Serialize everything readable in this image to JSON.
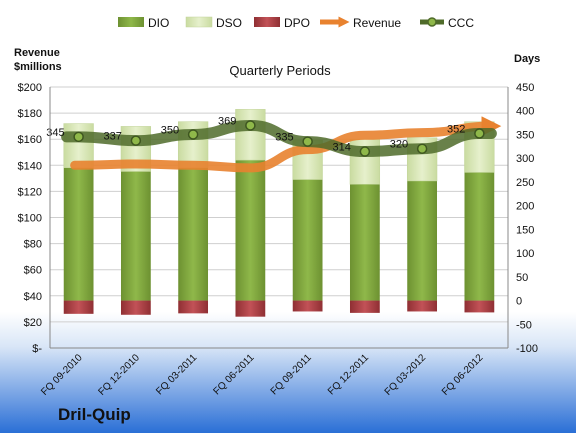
{
  "company": "Dril-Quip",
  "chart_data": {
    "type": "bar",
    "title": "Quarterly Periods",
    "left_axis_title": [
      "Revenue",
      "$millions"
    ],
    "right_axis_title": "Days",
    "categories": [
      "FQ 09-2010",
      "FQ 12-2010",
      "FQ 03-2011",
      "FQ 06-2011",
      "FQ 09-2011",
      "FQ 12-2011",
      "FQ 03-2012",
      "FQ 06-2012"
    ],
    "left_ticks": [
      "$-",
      "$20",
      "$40",
      "$60",
      "$80",
      "$100",
      "$120",
      "$140",
      "$160",
      "$180",
      "$200"
    ],
    "left_ylim": [
      0,
      200
    ],
    "right_ticks": [
      "-100",
      "-50",
      "0",
      "50",
      "100",
      "150",
      "200",
      "250",
      "300",
      "350",
      "400",
      "450"
    ],
    "right_ylim": [
      -100,
      450
    ],
    "legend": [
      {
        "key": "DIO",
        "label": "DIO"
      },
      {
        "key": "DSO",
        "label": "DSO"
      },
      {
        "key": "DPO",
        "label": "DPO"
      },
      {
        "key": "Revenue",
        "label": "Revenue"
      },
      {
        "key": "CCC",
        "label": "CCC"
      }
    ],
    "legend_position": "top",
    "series": [
      {
        "name": "DIO",
        "axis": "right",
        "values": [
          280,
          272,
          280,
          296,
          255,
          245,
          252,
          270
        ]
      },
      {
        "name": "DSO",
        "axis": "right",
        "values": [
          93,
          95,
          97,
          107,
          83,
          95,
          91,
          107
        ]
      },
      {
        "name": "DPO",
        "axis": "right",
        "values": [
          -28,
          -30,
          -27,
          -34,
          -23,
          -26,
          -23,
          -25
        ]
      },
      {
        "name": "Revenue",
        "axis": "left",
        "values": [
          140,
          141,
          140,
          138,
          152,
          163,
          165,
          170
        ]
      },
      {
        "name": "CCC",
        "axis": "right",
        "values": [
          345,
          337,
          350,
          369,
          335,
          314,
          320,
          352
        ]
      }
    ],
    "ccc_labels": [
      "345",
      "337",
      "350",
      "369",
      "335",
      "314",
      "320",
      "352"
    ],
    "colors": {
      "DIO": "#7fa53a",
      "DSO": "#d5e4b0",
      "DPO": "#a83b3f",
      "Revenue": "#e8822f",
      "CCC": "#4f6b2a",
      "plot_bg": "#ffffff",
      "bottom_gradient": "#2a6fd6"
    },
    "grid": true
  }
}
